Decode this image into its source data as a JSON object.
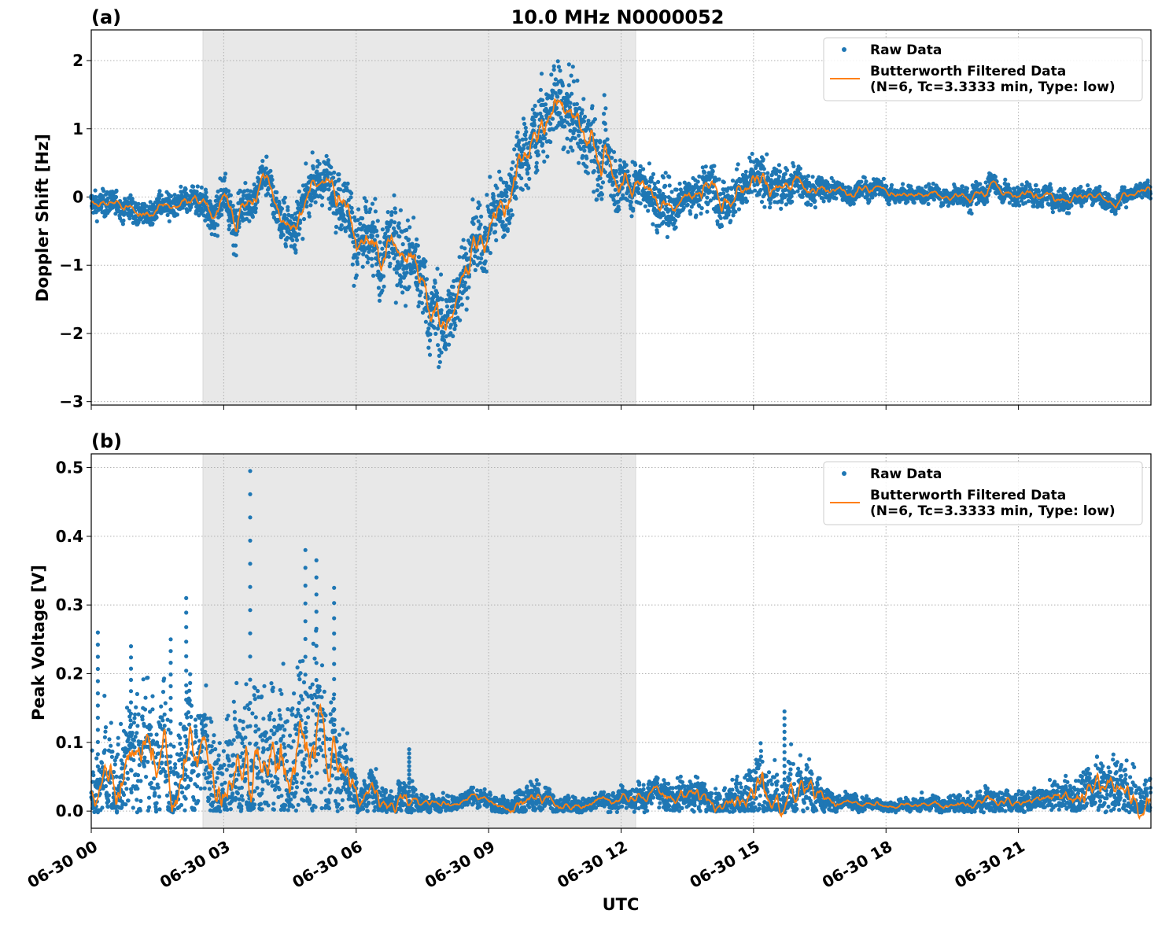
{
  "chart_data": [
    {
      "type": "scatter",
      "panel_label": "(a)",
      "title": "10.0 MHz N0000052",
      "xlabel": "",
      "ylabel": "Doppler Shift [Hz]",
      "xlim_hours": [
        0,
        24
      ],
      "ylim": [
        -3.05,
        2.45
      ],
      "yticks": [
        2,
        1,
        0,
        -1,
        -2,
        -3
      ],
      "ytick_labels": [
        "2",
        "1",
        "0",
        "−1",
        "−2",
        "−3"
      ],
      "grid": true,
      "legend_position": "top-right",
      "shaded_interval_hours": [
        2.53,
        12.33
      ],
      "series": [
        {
          "name": "Raw Data",
          "marker": "dot",
          "color": "#1f77b4",
          "x_hours": [
            0,
            0.5,
            1,
            1.5,
            2,
            2.5,
            3,
            3.5,
            4,
            4.5,
            5,
            5.5,
            6,
            6.5,
            7,
            7.5,
            8,
            8.5,
            9,
            9.5,
            10,
            10.5,
            11,
            11.5,
            12,
            12.5,
            13,
            13.5,
            14,
            14.5,
            15,
            15.5,
            16,
            16.5,
            17,
            17.5,
            18,
            18.5,
            19,
            19.5,
            20,
            20.5,
            21,
            21.5,
            22,
            22.5,
            23,
            23.5,
            24
          ],
          "y": [
            -0.1,
            -0.15,
            -0.2,
            -0.15,
            -0.1,
            -0.15,
            -0.3,
            -0.1,
            0.2,
            -0.4,
            0.1,
            0.4,
            -0.3,
            -0.9,
            -0.5,
            -1.2,
            -1.9,
            -1.0,
            -0.3,
            0.3,
            0.8,
            1.6,
            1.0,
            0.6,
            0.4,
            0.2,
            -0.2,
            0.1,
            0.2,
            0.15,
            0.2,
            0.25,
            0.15,
            0.1,
            0.1,
            0.05,
            0.1,
            0.05,
            0.05,
            0.0,
            0.1,
            0.15,
            0.05,
            0.0,
            0.0,
            0.05,
            0.0,
            0.0,
            0.05
          ],
          "y_spread": [
            0.15,
            0.15,
            0.15,
            0.15,
            0.15,
            0.2,
            0.3,
            0.25,
            0.25,
            0.3,
            0.3,
            0.3,
            0.5,
            0.5,
            0.5,
            0.5,
            0.5,
            0.45,
            0.45,
            0.45,
            0.45,
            0.45,
            0.45,
            0.45,
            0.35,
            0.3,
            0.35,
            0.2,
            0.3,
            0.25,
            0.3,
            0.25,
            0.2,
            0.15,
            0.12,
            0.12,
            0.12,
            0.1,
            0.1,
            0.1,
            0.15,
            0.12,
            0.12,
            0.12,
            0.15,
            0.1,
            0.1,
            0.1,
            0.1
          ]
        },
        {
          "name": "Butterworth Filtered Data\n(N=6, Tc=3.3333 min, Type: low)",
          "marker": "line",
          "color": "#ff7f0e"
        }
      ]
    },
    {
      "type": "scatter",
      "panel_label": "(b)",
      "title": "",
      "xlabel": "UTC",
      "ylabel": "Peak Voltage [V]",
      "xlim_hours": [
        0,
        24
      ],
      "ylim": [
        -0.025,
        0.52
      ],
      "yticks": [
        0.5,
        0.4,
        0.3,
        0.2,
        0.1,
        0.0
      ],
      "ytick_labels": [
        "0.5",
        "0.4",
        "0.3",
        "0.2",
        "0.1",
        "0.0"
      ],
      "xticks_hours": [
        0,
        3,
        6,
        9,
        12,
        15,
        18,
        21
      ],
      "xtick_labels": [
        "06-30 00",
        "06-30 03",
        "06-30 06",
        "06-30 09",
        "06-30 12",
        "06-30 15",
        "06-30 18",
        "06-30 21"
      ],
      "grid": true,
      "legend_position": "top-right",
      "shaded_interval_hours": [
        2.53,
        12.33
      ],
      "series": [
        {
          "name": "Raw Data",
          "marker": "dot",
          "color": "#1f77b4",
          "x_hours": [
            0,
            0.5,
            1,
            1.5,
            2,
            2.5,
            3,
            3.5,
            4,
            4.5,
            5,
            5.5,
            6,
            6.5,
            7,
            7.5,
            8,
            8.5,
            9,
            9.5,
            10,
            10.5,
            11,
            11.5,
            12,
            12.5,
            13,
            13.5,
            14,
            14.5,
            15,
            15.5,
            16,
            16.5,
            17,
            17.5,
            18,
            18.5,
            19,
            19.5,
            20,
            20.5,
            21,
            21.5,
            22,
            22.5,
            23,
            23.5,
            24
          ],
          "y": [
            0.02,
            0.06,
            0.08,
            0.07,
            0.08,
            0.07,
            0.06,
            0.09,
            0.06,
            0.08,
            0.1,
            0.09,
            0.02,
            0.015,
            0.025,
            0.01,
            0.01,
            0.012,
            0.01,
            0.015,
            0.02,
            0.015,
            0.01,
            0.012,
            0.015,
            0.015,
            0.02,
            0.02,
            0.015,
            0.02,
            0.03,
            0.04,
            0.03,
            0.02,
            0.01,
            0.008,
            0.006,
            0.008,
            0.01,
            0.01,
            0.01,
            0.015,
            0.01,
            0.01,
            0.02,
            0.03,
            0.04,
            0.03,
            0.02
          ],
          "y_spread": [
            0.04,
            0.07,
            0.08,
            0.08,
            0.08,
            0.08,
            0.09,
            0.1,
            0.09,
            0.1,
            0.1,
            0.08,
            0.03,
            0.02,
            0.03,
            0.01,
            0.01,
            0.01,
            0.01,
            0.015,
            0.02,
            0.015,
            0.01,
            0.01,
            0.015,
            0.015,
            0.02,
            0.02,
            0.02,
            0.025,
            0.04,
            0.05,
            0.04,
            0.02,
            0.01,
            0.008,
            0.006,
            0.008,
            0.01,
            0.012,
            0.012,
            0.015,
            0.012,
            0.012,
            0.02,
            0.03,
            0.04,
            0.04,
            0.03
          ],
          "peaks": [
            [
              3.6,
              0.495
            ],
            [
              4.85,
              0.38
            ],
            [
              5.1,
              0.365
            ],
            [
              5.5,
              0.325
            ],
            [
              2.15,
              0.31
            ],
            [
              0.15,
              0.26
            ],
            [
              0.9,
              0.24
            ],
            [
              1.8,
              0.25
            ],
            [
              15.7,
              0.145
            ],
            [
              7.2,
              0.09
            ]
          ]
        },
        {
          "name": "Butterworth Filtered Data\n(N=6, Tc=3.3333 min, Type: low)",
          "marker": "line",
          "color": "#ff7f0e"
        }
      ]
    }
  ]
}
